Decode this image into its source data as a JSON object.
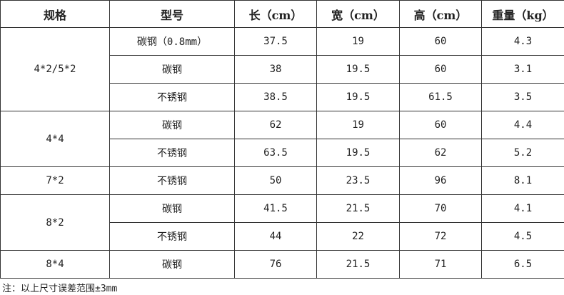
{
  "headers": [
    "规格",
    "型号",
    "长（cm）",
    "宽（cm）",
    "高（cm）",
    "重量（kg）"
  ],
  "groups": [
    {
      "spec": "4*2/5*2",
      "rows": [
        [
          "碳钢（0.8mm）",
          "37.5",
          "19",
          "60",
          "4.3"
        ],
        [
          "碳钢",
          "38",
          "19.5",
          "60",
          "3.1"
        ],
        [
          "不锈钢",
          "38.5",
          "19.5",
          "61.5",
          "3.5"
        ]
      ]
    },
    {
      "spec": "4*4",
      "rows": [
        [
          "碳钢",
          "62",
          "19",
          "60",
          "4.4"
        ],
        [
          "不锈钢",
          "63.5",
          "19.5",
          "62",
          "5.2"
        ]
      ]
    },
    {
      "spec": "7*2",
      "rows": [
        [
          "不锈钢",
          "50",
          "23.5",
          "96",
          "8.1"
        ]
      ]
    },
    {
      "spec": "8*2",
      "rows": [
        [
          "碳钢",
          "41.5",
          "21.5",
          "70",
          "4.1"
        ],
        [
          "不锈钢",
          "44",
          "22",
          "72",
          "4.5"
        ]
      ]
    },
    {
      "spec": "8*4",
      "rows": [
        [
          "碳钢",
          "76",
          "21.5",
          "71",
          "6.5"
        ]
      ]
    }
  ],
  "note": "注：以上尺寸误差范围±3mm"
}
